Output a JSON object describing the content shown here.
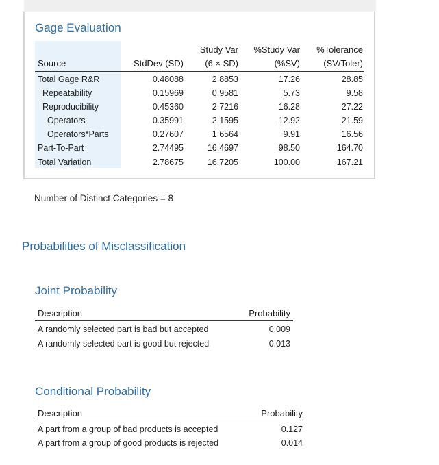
{
  "gage_evaluation": {
    "title": "Gage Evaluation",
    "headers": {
      "source": "Source",
      "stddev": "StdDev (SD)",
      "studyvar_1": "Study Var",
      "studyvar_2": "(6 × SD)",
      "pct_studyvar_1": "%Study Var",
      "pct_studyvar_2": "(%SV)",
      "pct_tol_1": "%Tolerance",
      "pct_tol_2": "(SV/Toler)"
    },
    "rows": [
      {
        "source": "Total Gage R&R",
        "sd": "0.48088",
        "sv": "2.8853",
        "psv": "17.26",
        "ptol": "28.85"
      },
      {
        "source": "Repeatability",
        "sd": "0.15969",
        "sv": "0.9581",
        "psv": "5.73",
        "ptol": "9.58"
      },
      {
        "source": "Reproducibility",
        "sd": "0.45360",
        "sv": "2.7216",
        "psv": "16.28",
        "ptol": "27.22"
      },
      {
        "source": "Operators",
        "sd": "0.35991",
        "sv": "2.1595",
        "psv": "12.92",
        "ptol": "21.59"
      },
      {
        "source": "Operators*Parts",
        "sd": "0.27607",
        "sv": "1.6564",
        "psv": "9.91",
        "ptol": "16.56"
      },
      {
        "source": "Part-To-Part",
        "sd": "2.74495",
        "sv": "16.4697",
        "psv": "98.50",
        "ptol": "164.70"
      },
      {
        "source": "Total Variation",
        "sd": "2.78675",
        "sv": "16.7205",
        "psv": "100.00",
        "ptol": "167.21"
      }
    ]
  },
  "ndc_text": "Number of Distinct Categories = 8",
  "misclassification_title": "Probabilities of Misclassification",
  "joint": {
    "title": "Joint Probability",
    "col_description": "Description",
    "col_probability": "Probability",
    "rows": [
      {
        "description": "A randomly selected part is bad but accepted",
        "probability": "0.009"
      },
      {
        "description": "A randomly selected part is good but rejected",
        "probability": "0.013"
      }
    ]
  },
  "conditional": {
    "title": "Conditional Probability",
    "col_description": "Description",
    "col_probability": "Probability",
    "rows": [
      {
        "description": "A part from a group of bad products is accepted",
        "probability": "0.127"
      },
      {
        "description": "A part from a group of good products is rejected",
        "probability": "0.014"
      }
    ]
  },
  "colors": {
    "heading": "#2e6da4",
    "source_bg": "#e7f2fb",
    "frame": "#d6d6d6"
  }
}
